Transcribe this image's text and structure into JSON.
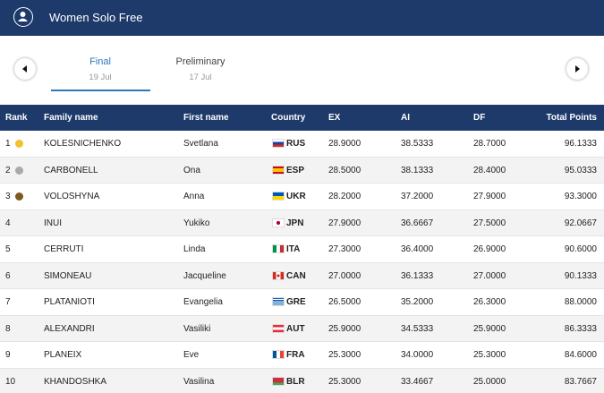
{
  "header": {
    "title": "Women Solo Free"
  },
  "tabs": [
    {
      "label": "Final",
      "date": "19 Jul"
    },
    {
      "label": "Preliminary",
      "date": "17 Jul"
    }
  ],
  "table": {
    "columns": [
      "Rank",
      "Family name",
      "First name",
      "Country",
      "EX",
      "AI",
      "DF",
      "Total Points"
    ],
    "rows": [
      [
        "1",
        "KOLESNICHENKO",
        "Svetlana",
        "RUS",
        "28.9000",
        "38.5333",
        "28.7000",
        "96.1333"
      ],
      [
        "2",
        "CARBONELL",
        "Ona",
        "ESP",
        "28.5000",
        "38.1333",
        "28.4000",
        "95.0333"
      ],
      [
        "3",
        "VOLOSHYNA",
        "Anna",
        "UKR",
        "28.2000",
        "37.2000",
        "27.9000",
        "93.3000"
      ],
      [
        "4",
        "INUI",
        "Yukiko",
        "JPN",
        "27.9000",
        "36.6667",
        "27.5000",
        "92.0667"
      ],
      [
        "5",
        "CERRUTI",
        "Linda",
        "ITA",
        "27.3000",
        "36.4000",
        "26.9000",
        "90.6000"
      ],
      [
        "6",
        "SIMONEAU",
        "Jacqueline",
        "CAN",
        "27.0000",
        "36.1333",
        "27.0000",
        "90.1333"
      ],
      [
        "7",
        "PLATANIOTI",
        "Evangelia",
        "GRE",
        "26.5000",
        "35.2000",
        "26.3000",
        "88.0000"
      ],
      [
        "8",
        "ALEXANDRI",
        "Vasiliki",
        "AUT",
        "25.9000",
        "34.5333",
        "25.9000",
        "86.3333"
      ],
      [
        "9",
        "PLANEIX",
        "Eve",
        "FRA",
        "25.3000",
        "34.0000",
        "25.3000",
        "84.6000"
      ],
      [
        "10",
        "KHANDOSHKA",
        "Vasilina",
        "BLR",
        "25.3000",
        "33.4667",
        "25.0000",
        "83.7667"
      ]
    ]
  }
}
